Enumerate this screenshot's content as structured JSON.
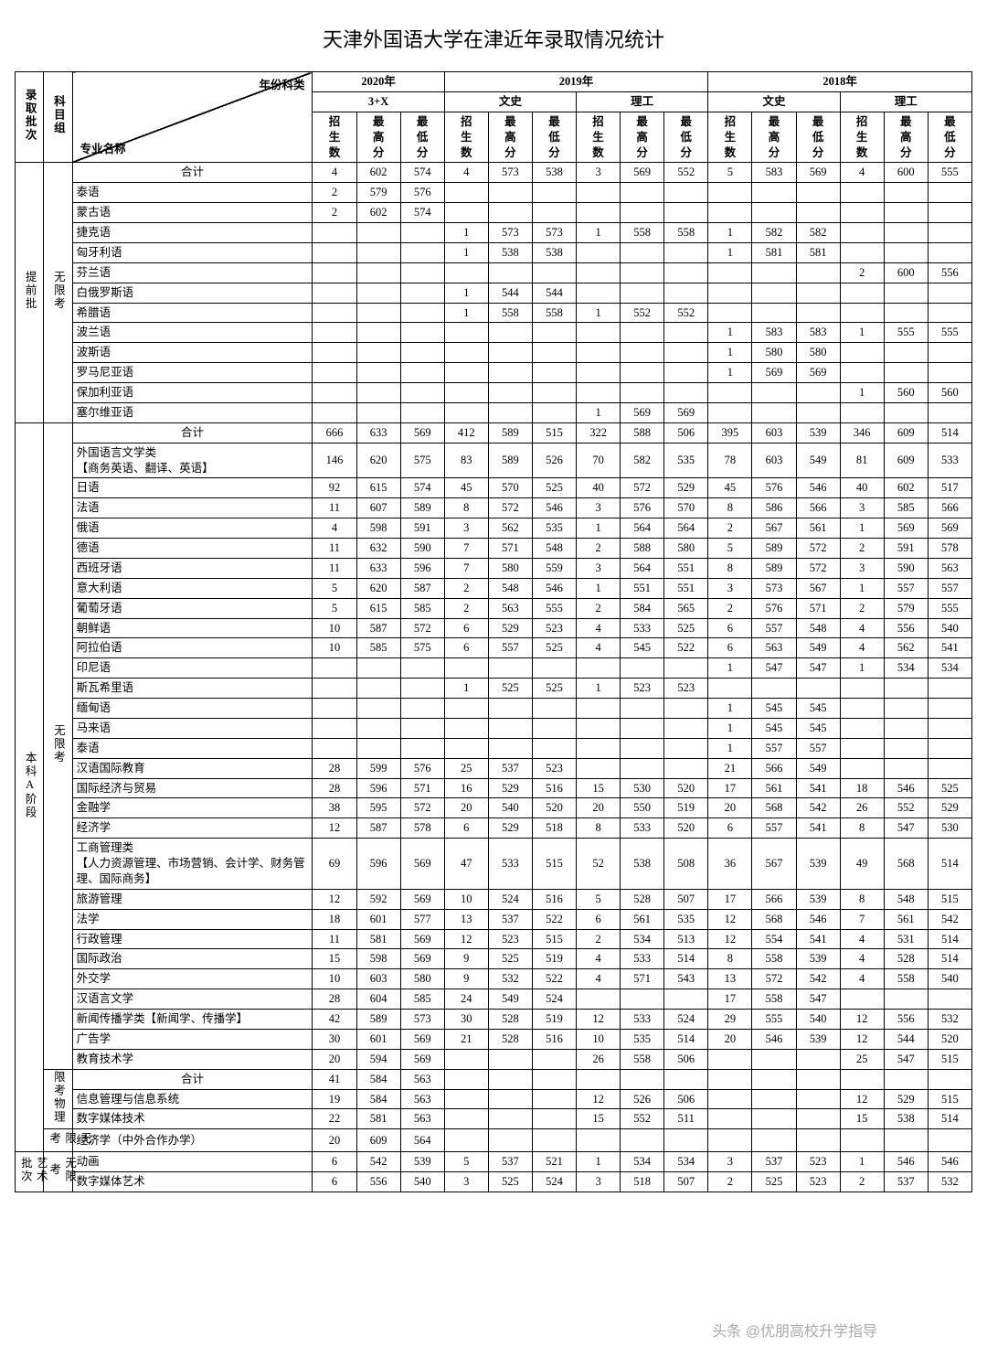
{
  "title": "天津外国语大学在津近年录取情况统计",
  "header": {
    "diag_top": "年份科类",
    "diag_bottom": "专业名称",
    "col_batch": "录取批次",
    "col_group": "科目组",
    "years": [
      "2020年",
      "2019年",
      "2018年"
    ],
    "y2020_sub": "3+X",
    "y2019_sub": [
      "文史",
      "理工"
    ],
    "y2018_sub": [
      "文史",
      "理工"
    ],
    "cols3": [
      "招生数",
      "最高分",
      "最低分"
    ]
  },
  "batches": {
    "b1": "提前批",
    "b2": "本科A阶段",
    "b3": "艺术批次"
  },
  "groups": {
    "g1": "无限考",
    "g2": "限考物理",
    "g3": "无限考",
    "g4": "无限考"
  },
  "rows_b1": [
    {
      "m": "合计",
      "c": [
        "4",
        "602",
        "574",
        "4",
        "573",
        "538",
        "3",
        "569",
        "552",
        "5",
        "583",
        "569",
        "4",
        "600",
        "555"
      ],
      "center": true
    },
    {
      "m": "泰语",
      "c": [
        "2",
        "579",
        "576",
        "",
        "",
        "",
        "",
        "",
        "",
        "",
        "",
        "",
        "",
        "",
        ""
      ]
    },
    {
      "m": "蒙古语",
      "c": [
        "2",
        "602",
        "574",
        "",
        "",
        "",
        "",
        "",
        "",
        "",
        "",
        "",
        "",
        "",
        ""
      ]
    },
    {
      "m": "捷克语",
      "c": [
        "",
        "",
        "",
        "1",
        "573",
        "573",
        "1",
        "558",
        "558",
        "1",
        "582",
        "582",
        "",
        "",
        ""
      ]
    },
    {
      "m": "匈牙利语",
      "c": [
        "",
        "",
        "",
        "1",
        "538",
        "538",
        "",
        "",
        "",
        "1",
        "581",
        "581",
        "",
        "",
        ""
      ]
    },
    {
      "m": "芬兰语",
      "c": [
        "",
        "",
        "",
        "",
        "",
        "",
        "",
        "",
        "",
        "",
        "",
        "",
        "2",
        "600",
        "556"
      ]
    },
    {
      "m": "白俄罗斯语",
      "c": [
        "",
        "",
        "",
        "1",
        "544",
        "544",
        "",
        "",
        "",
        "",
        "",
        "",
        "",
        "",
        ""
      ]
    },
    {
      "m": "希腊语",
      "c": [
        "",
        "",
        "",
        "1",
        "558",
        "558",
        "1",
        "552",
        "552",
        "",
        "",
        "",
        "",
        "",
        ""
      ]
    },
    {
      "m": "波兰语",
      "c": [
        "",
        "",
        "",
        "",
        "",
        "",
        "",
        "",
        "",
        "1",
        "583",
        "583",
        "1",
        "555",
        "555"
      ]
    },
    {
      "m": "波斯语",
      "c": [
        "",
        "",
        "",
        "",
        "",
        "",
        "",
        "",
        "",
        "1",
        "580",
        "580",
        "",
        "",
        ""
      ]
    },
    {
      "m": "罗马尼亚语",
      "c": [
        "",
        "",
        "",
        "",
        "",
        "",
        "",
        "",
        "",
        "1",
        "569",
        "569",
        "",
        "",
        ""
      ]
    },
    {
      "m": "保加利亚语",
      "c": [
        "",
        "",
        "",
        "",
        "",
        "",
        "",
        "",
        "",
        "",
        "",
        "",
        "1",
        "560",
        "560"
      ]
    },
    {
      "m": "塞尔维亚语",
      "c": [
        "",
        "",
        "",
        "",
        "",
        "",
        "1",
        "569",
        "569",
        "",
        "",
        "",
        "",
        "",
        ""
      ]
    }
  ],
  "rows_b2_g1": [
    {
      "m": "合计",
      "c": [
        "666",
        "633",
        "569",
        "412",
        "589",
        "515",
        "322",
        "588",
        "506",
        "395",
        "603",
        "539",
        "346",
        "609",
        "514"
      ],
      "center": true
    },
    {
      "m": "外国语言文学类\n【商务英语、翻译、英语】",
      "c": [
        "146",
        "620",
        "575",
        "83",
        "589",
        "526",
        "70",
        "582",
        "535",
        "78",
        "603",
        "549",
        "81",
        "609",
        "533"
      ]
    },
    {
      "m": "日语",
      "c": [
        "92",
        "615",
        "574",
        "45",
        "570",
        "525",
        "40",
        "572",
        "529",
        "45",
        "576",
        "546",
        "40",
        "602",
        "517"
      ]
    },
    {
      "m": "法语",
      "c": [
        "11",
        "607",
        "589",
        "8",
        "572",
        "546",
        "3",
        "576",
        "570",
        "8",
        "586",
        "566",
        "3",
        "585",
        "566"
      ]
    },
    {
      "m": "俄语",
      "c": [
        "4",
        "598",
        "591",
        "3",
        "562",
        "535",
        "1",
        "564",
        "564",
        "2",
        "567",
        "561",
        "1",
        "569",
        "569"
      ]
    },
    {
      "m": "德语",
      "c": [
        "11",
        "632",
        "590",
        "7",
        "571",
        "548",
        "2",
        "588",
        "580",
        "5",
        "589",
        "572",
        "2",
        "591",
        "578"
      ]
    },
    {
      "m": "西班牙语",
      "c": [
        "11",
        "633",
        "596",
        "7",
        "580",
        "559",
        "3",
        "564",
        "551",
        "8",
        "589",
        "572",
        "3",
        "590",
        "563"
      ]
    },
    {
      "m": "意大利语",
      "c": [
        "5",
        "620",
        "587",
        "2",
        "548",
        "546",
        "1",
        "551",
        "551",
        "3",
        "573",
        "567",
        "1",
        "557",
        "557"
      ]
    },
    {
      "m": "葡萄牙语",
      "c": [
        "5",
        "615",
        "585",
        "2",
        "563",
        "555",
        "2",
        "584",
        "565",
        "2",
        "576",
        "571",
        "2",
        "579",
        "555"
      ]
    },
    {
      "m": "朝鲜语",
      "c": [
        "10",
        "587",
        "572",
        "6",
        "529",
        "523",
        "4",
        "533",
        "525",
        "6",
        "557",
        "548",
        "4",
        "556",
        "540"
      ]
    },
    {
      "m": "阿拉伯语",
      "c": [
        "10",
        "585",
        "575",
        "6",
        "557",
        "525",
        "4",
        "545",
        "522",
        "6",
        "563",
        "549",
        "4",
        "562",
        "541"
      ]
    },
    {
      "m": "印尼语",
      "c": [
        "",
        "",
        "",
        "",
        "",
        "",
        "",
        "",
        "",
        "1",
        "547",
        "547",
        "1",
        "534",
        "534"
      ]
    },
    {
      "m": "斯瓦希里语",
      "c": [
        "",
        "",
        "",
        "1",
        "525",
        "525",
        "1",
        "523",
        "523",
        "",
        "",
        "",
        "",
        "",
        ""
      ]
    },
    {
      "m": "缅甸语",
      "c": [
        "",
        "",
        "",
        "",
        "",
        "",
        "",
        "",
        "",
        "1",
        "545",
        "545",
        "",
        "",
        ""
      ]
    },
    {
      "m": "马来语",
      "c": [
        "",
        "",
        "",
        "",
        "",
        "",
        "",
        "",
        "",
        "1",
        "545",
        "545",
        "",
        "",
        ""
      ]
    },
    {
      "m": "泰语",
      "c": [
        "",
        "",
        "",
        "",
        "",
        "",
        "",
        "",
        "",
        "1",
        "557",
        "557",
        "",
        "",
        ""
      ]
    },
    {
      "m": "汉语国际教育",
      "c": [
        "28",
        "599",
        "576",
        "25",
        "537",
        "523",
        "",
        "",
        "",
        "21",
        "566",
        "549",
        "",
        "",
        ""
      ]
    },
    {
      "m": "国际经济与贸易",
      "c": [
        "28",
        "596",
        "571",
        "16",
        "529",
        "516",
        "15",
        "530",
        "520",
        "17",
        "561",
        "541",
        "18",
        "546",
        "525"
      ]
    },
    {
      "m": "金融学",
      "c": [
        "38",
        "595",
        "572",
        "20",
        "540",
        "520",
        "20",
        "550",
        "519",
        "20",
        "568",
        "542",
        "26",
        "552",
        "529"
      ]
    },
    {
      "m": "经济学",
      "c": [
        "12",
        "587",
        "578",
        "6",
        "529",
        "518",
        "8",
        "533",
        "520",
        "6",
        "557",
        "541",
        "8",
        "547",
        "530"
      ]
    },
    {
      "m": "工商管理类\n【人力资源管理、市场营销、会计学、财务管理、国际商务】",
      "c": [
        "69",
        "596",
        "569",
        "47",
        "533",
        "515",
        "52",
        "538",
        "508",
        "36",
        "567",
        "539",
        "49",
        "568",
        "514"
      ]
    },
    {
      "m": "旅游管理",
      "c": [
        "12",
        "592",
        "569",
        "10",
        "524",
        "516",
        "5",
        "528",
        "507",
        "17",
        "566",
        "539",
        "8",
        "548",
        "515"
      ]
    },
    {
      "m": "法学",
      "c": [
        "18",
        "601",
        "577",
        "13",
        "537",
        "522",
        "6",
        "561",
        "535",
        "12",
        "568",
        "546",
        "7",
        "561",
        "542"
      ]
    },
    {
      "m": "行政管理",
      "c": [
        "11",
        "581",
        "569",
        "12",
        "523",
        "515",
        "2",
        "534",
        "513",
        "12",
        "554",
        "541",
        "4",
        "531",
        "514"
      ]
    },
    {
      "m": "国际政治",
      "c": [
        "15",
        "598",
        "569",
        "9",
        "525",
        "519",
        "4",
        "533",
        "514",
        "8",
        "558",
        "539",
        "4",
        "528",
        "514"
      ]
    },
    {
      "m": "外交学",
      "c": [
        "10",
        "603",
        "580",
        "9",
        "532",
        "522",
        "4",
        "571",
        "543",
        "13",
        "572",
        "542",
        "4",
        "558",
        "540"
      ]
    },
    {
      "m": "汉语言文学",
      "c": [
        "28",
        "604",
        "585",
        "24",
        "549",
        "524",
        "",
        "",
        "",
        "17",
        "558",
        "547",
        "",
        "",
        ""
      ]
    },
    {
      "m": "新闻传播学类【新闻学、传播学】",
      "c": [
        "42",
        "589",
        "573",
        "30",
        "528",
        "519",
        "12",
        "533",
        "524",
        "29",
        "555",
        "540",
        "12",
        "556",
        "532"
      ]
    },
    {
      "m": "广告学",
      "c": [
        "30",
        "601",
        "569",
        "21",
        "528",
        "516",
        "10",
        "535",
        "514",
        "20",
        "546",
        "539",
        "12",
        "544",
        "520"
      ]
    },
    {
      "m": "教育技术学",
      "c": [
        "20",
        "594",
        "569",
        "",
        "",
        "",
        "26",
        "558",
        "506",
        "",
        "",
        "",
        "25",
        "547",
        "515"
      ]
    }
  ],
  "rows_b2_g2": [
    {
      "m": "合计",
      "c": [
        "41",
        "584",
        "563",
        "",
        "",
        "",
        "",
        "",
        "",
        "",
        "",
        "",
        "",
        "",
        ""
      ],
      "center": true
    },
    {
      "m": "信息管理与信息系统",
      "c": [
        "19",
        "584",
        "563",
        "",
        "",
        "",
        "12",
        "526",
        "506",
        "",
        "",
        "",
        "12",
        "529",
        "515"
      ]
    },
    {
      "m": "数字媒体技术",
      "c": [
        "22",
        "581",
        "563",
        "",
        "",
        "",
        "15",
        "552",
        "511",
        "",
        "",
        "",
        "15",
        "538",
        "514"
      ]
    }
  ],
  "rows_b2_g3": [
    {
      "m": "经济学（中外合作办学）",
      "c": [
        "20",
        "609",
        "564",
        "",
        "",
        "",
        "",
        "",
        "",
        "",
        "",
        "",
        "",
        "",
        ""
      ]
    }
  ],
  "rows_b3": [
    {
      "m": "动画",
      "c": [
        "6",
        "542",
        "539",
        "5",
        "537",
        "521",
        "1",
        "534",
        "534",
        "3",
        "537",
        "523",
        "1",
        "546",
        "546"
      ]
    },
    {
      "m": "数字媒体艺术",
      "c": [
        "6",
        "556",
        "540",
        "3",
        "525",
        "524",
        "3",
        "518",
        "507",
        "2",
        "525",
        "523",
        "2",
        "537",
        "532"
      ]
    }
  ],
  "watermark": "头条 @优朋高校升学指导"
}
